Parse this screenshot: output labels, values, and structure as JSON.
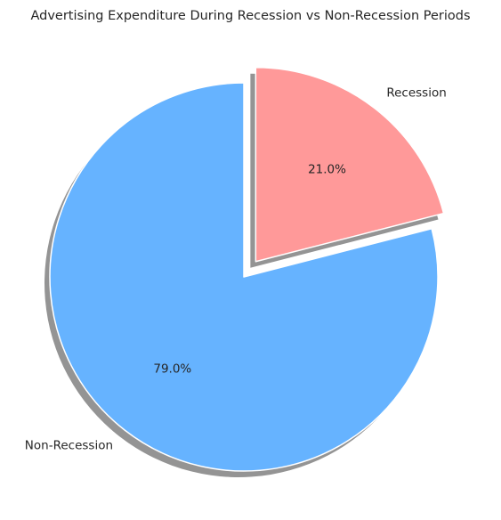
{
  "chart_data": {
    "type": "pie",
    "title": "Advertising Expenditure During Recession vs Non-Recession Periods",
    "slices": [
      {
        "label": "Recession",
        "value": 21.0,
        "pct_label": "21.0%",
        "color": "#ff9999",
        "exploded": true
      },
      {
        "label": "Non-Recession",
        "value": 79.0,
        "pct_label": "79.0%",
        "color": "#66b3ff",
        "exploded": false
      }
    ],
    "start_angle_deg": 90,
    "direction": "clockwise",
    "shadow": true,
    "edge_color": "#ffffff"
  }
}
